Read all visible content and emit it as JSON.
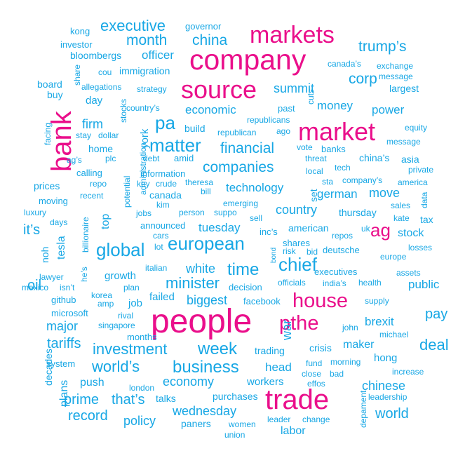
{
  "colors": {
    "primary": "#ea0f8b",
    "secondary": "#17a7e5"
  },
  "words": [
    {
      "text": "people",
      "group": "primary"
    },
    {
      "text": "company",
      "group": "primary"
    },
    {
      "text": "trade",
      "group": "primary"
    },
    {
      "text": "markets",
      "group": "primary"
    },
    {
      "text": "source",
      "group": "primary"
    },
    {
      "text": "market",
      "group": "primary"
    },
    {
      "text": "bank",
      "group": "primary"
    },
    {
      "text": "house",
      "group": "primary"
    },
    {
      "text": "pthe",
      "group": "primary"
    },
    {
      "text": "ag",
      "group": "primary"
    },
    {
      "text": "executive",
      "group": "secondary"
    },
    {
      "text": "governor",
      "group": "secondary"
    },
    {
      "text": "kong",
      "group": "secondary"
    },
    {
      "text": "month",
      "group": "secondary"
    },
    {
      "text": "china",
      "group": "secondary"
    },
    {
      "text": "trump’s",
      "group": "secondary"
    },
    {
      "text": "investor",
      "group": "secondary"
    },
    {
      "text": "bloombergs",
      "group": "secondary"
    },
    {
      "text": "officer",
      "group": "secondary"
    },
    {
      "text": "canada’s",
      "group": "secondary"
    },
    {
      "text": "exchange",
      "group": "secondary"
    },
    {
      "text": "cou",
      "group": "secondary"
    },
    {
      "text": "immigration",
      "group": "secondary"
    },
    {
      "text": "message",
      "group": "secondary"
    },
    {
      "text": "share",
      "group": "secondary"
    },
    {
      "text": "corp",
      "group": "secondary"
    },
    {
      "text": "board",
      "group": "secondary"
    },
    {
      "text": "allegations",
      "group": "secondary"
    },
    {
      "text": "strategy",
      "group": "secondary"
    },
    {
      "text": "summit",
      "group": "secondary"
    },
    {
      "text": "largest",
      "group": "secondary"
    },
    {
      "text": "buy",
      "group": "secondary"
    },
    {
      "text": "cuts",
      "group": "secondary"
    },
    {
      "text": "day",
      "group": "secondary"
    },
    {
      "text": "stocks",
      "group": "secondary"
    },
    {
      "text": "country’s",
      "group": "secondary"
    },
    {
      "text": "money",
      "group": "secondary"
    },
    {
      "text": "economic",
      "group": "secondary"
    },
    {
      "text": "past",
      "group": "secondary"
    },
    {
      "text": "power",
      "group": "secondary"
    },
    {
      "text": "republicans",
      "group": "secondary"
    },
    {
      "text": "facing",
      "group": "secondary"
    },
    {
      "text": "pa",
      "group": "secondary"
    },
    {
      "text": "firm",
      "group": "secondary"
    },
    {
      "text": "build",
      "group": "secondary"
    },
    {
      "text": "republican",
      "group": "secondary"
    },
    {
      "text": "ago",
      "group": "secondary"
    },
    {
      "text": "equity",
      "group": "secondary"
    },
    {
      "text": "stay",
      "group": "secondary"
    },
    {
      "text": "dollar",
      "group": "secondary"
    },
    {
      "text": "york",
      "group": "secondary"
    },
    {
      "text": "matter",
      "group": "secondary"
    },
    {
      "text": "financial",
      "group": "secondary"
    },
    {
      "text": "message",
      "group": "secondary"
    },
    {
      "text": "home",
      "group": "secondary"
    },
    {
      "text": "vote",
      "group": "secondary"
    },
    {
      "text": "banks",
      "group": "secondary"
    },
    {
      "text": "ag’s",
      "group": "secondary"
    },
    {
      "text": "plc",
      "group": "secondary"
    },
    {
      "text": "debt",
      "group": "secondary"
    },
    {
      "text": "amid",
      "group": "secondary"
    },
    {
      "text": "threat",
      "group": "secondary"
    },
    {
      "text": "china’s",
      "group": "secondary"
    },
    {
      "text": "asia",
      "group": "secondary"
    },
    {
      "text": "administration",
      "group": "secondary"
    },
    {
      "text": "companies",
      "group": "secondary"
    },
    {
      "text": "tech",
      "group": "secondary"
    },
    {
      "text": "private",
      "group": "secondary"
    },
    {
      "text": "calling",
      "group": "secondary"
    },
    {
      "text": "information",
      "group": "secondary"
    },
    {
      "text": "local",
      "group": "secondary"
    },
    {
      "text": "company’s",
      "group": "secondary"
    },
    {
      "text": "repo",
      "group": "secondary"
    },
    {
      "text": "key",
      "group": "secondary"
    },
    {
      "text": "crude",
      "group": "secondary"
    },
    {
      "text": "theresa",
      "group": "secondary"
    },
    {
      "text": "sta",
      "group": "secondary"
    },
    {
      "text": "america",
      "group": "secondary"
    },
    {
      "text": "prices",
      "group": "secondary"
    },
    {
      "text": "potential",
      "group": "secondary"
    },
    {
      "text": "technology",
      "group": "secondary"
    },
    {
      "text": "set",
      "group": "secondary"
    },
    {
      "text": "german",
      "group": "secondary"
    },
    {
      "text": "move",
      "group": "secondary"
    },
    {
      "text": "recent",
      "group": "secondary"
    },
    {
      "text": "canada",
      "group": "secondary"
    },
    {
      "text": "bill",
      "group": "secondary"
    },
    {
      "text": "data",
      "group": "secondary"
    },
    {
      "text": "moving",
      "group": "secondary"
    },
    {
      "text": "kim",
      "group": "secondary"
    },
    {
      "text": "emerging",
      "group": "secondary"
    },
    {
      "text": "sales",
      "group": "secondary"
    },
    {
      "text": "luxury",
      "group": "secondary"
    },
    {
      "text": "billionaire",
      "group": "secondary"
    },
    {
      "text": "top",
      "group": "secondary"
    },
    {
      "text": "jobs",
      "group": "secondary"
    },
    {
      "text": "person",
      "group": "secondary"
    },
    {
      "text": "suppo",
      "group": "secondary"
    },
    {
      "text": "country",
      "group": "secondary"
    },
    {
      "text": "thursday",
      "group": "secondary"
    },
    {
      "text": "kate",
      "group": "secondary"
    },
    {
      "text": "tax",
      "group": "secondary"
    },
    {
      "text": "sell",
      "group": "secondary"
    },
    {
      "text": "days",
      "group": "secondary"
    },
    {
      "text": "announced",
      "group": "secondary"
    },
    {
      "text": "tuesday",
      "group": "secondary"
    },
    {
      "text": "american",
      "group": "secondary"
    },
    {
      "text": "uk",
      "group": "secondary"
    },
    {
      "text": "it’s",
      "group": "secondary"
    },
    {
      "text": "cars",
      "group": "secondary"
    },
    {
      "text": "inc’s",
      "group": "secondary"
    },
    {
      "text": "repos",
      "group": "secondary"
    },
    {
      "text": "stock",
      "group": "secondary"
    },
    {
      "text": "tesla",
      "group": "secondary"
    },
    {
      "text": "noh",
      "group": "secondary"
    },
    {
      "text": "bond",
      "group": "secondary"
    },
    {
      "text": "shares",
      "group": "secondary"
    },
    {
      "text": "deutsche",
      "group": "secondary"
    },
    {
      "text": "global",
      "group": "secondary"
    },
    {
      "text": "european",
      "group": "secondary"
    },
    {
      "text": "lot",
      "group": "secondary"
    },
    {
      "text": "risk",
      "group": "secondary"
    },
    {
      "text": "bid",
      "group": "secondary"
    },
    {
      "text": "losses",
      "group": "secondary"
    },
    {
      "text": "europe",
      "group": "secondary"
    },
    {
      "text": "chief",
      "group": "secondary"
    },
    {
      "text": "time",
      "group": "secondary"
    },
    {
      "text": "white",
      "group": "secondary"
    },
    {
      "text": "italian",
      "group": "secondary"
    },
    {
      "text": "lawyer",
      "group": "secondary"
    },
    {
      "text": "he’s",
      "group": "secondary"
    },
    {
      "text": "executives",
      "group": "secondary"
    },
    {
      "text": "assets",
      "group": "secondary"
    },
    {
      "text": "growth",
      "group": "secondary"
    },
    {
      "text": "minister",
      "group": "secondary"
    },
    {
      "text": "mexico",
      "group": "secondary"
    },
    {
      "text": "isn’t",
      "group": "secondary"
    },
    {
      "text": "plan",
      "group": "secondary"
    },
    {
      "text": "decision",
      "group": "secondary"
    },
    {
      "text": "officials",
      "group": "secondary"
    },
    {
      "text": "india’s",
      "group": "secondary"
    },
    {
      "text": "health",
      "group": "secondary"
    },
    {
      "text": "public",
      "group": "secondary"
    },
    {
      "text": "oil",
      "group": "secondary"
    },
    {
      "text": "github",
      "group": "secondary"
    },
    {
      "text": "korea",
      "group": "secondary"
    },
    {
      "text": "failed",
      "group": "secondary"
    },
    {
      "text": "biggest",
      "group": "secondary"
    },
    {
      "text": "facebook",
      "group": "secondary"
    },
    {
      "text": "supply",
      "group": "secondary"
    },
    {
      "text": "amp",
      "group": "secondary"
    },
    {
      "text": "job",
      "group": "secondary"
    },
    {
      "text": "pay",
      "group": "secondary"
    },
    {
      "text": "microsoft",
      "group": "secondary"
    },
    {
      "text": "rival",
      "group": "secondary"
    },
    {
      "text": "brexit",
      "group": "secondary"
    },
    {
      "text": "major",
      "group": "secondary"
    },
    {
      "text": "singapore",
      "group": "secondary"
    },
    {
      "text": "war",
      "group": "secondary"
    },
    {
      "text": "john",
      "group": "secondary"
    },
    {
      "text": "michael",
      "group": "secondary"
    },
    {
      "text": "months",
      "group": "secondary"
    },
    {
      "text": "tariffs",
      "group": "secondary"
    },
    {
      "text": "crisis",
      "group": "secondary"
    },
    {
      "text": "maker",
      "group": "secondary"
    },
    {
      "text": "deal",
      "group": "secondary"
    },
    {
      "text": "investment",
      "group": "secondary"
    },
    {
      "text": "week",
      "group": "secondary"
    },
    {
      "text": "trading",
      "group": "secondary"
    },
    {
      "text": "decades",
      "group": "secondary"
    },
    {
      "text": "system",
      "group": "secondary"
    },
    {
      "text": "hong",
      "group": "secondary"
    },
    {
      "text": "fund",
      "group": "secondary"
    },
    {
      "text": "morning",
      "group": "secondary"
    },
    {
      "text": "world’s",
      "group": "secondary"
    },
    {
      "text": "business",
      "group": "secondary"
    },
    {
      "text": "head",
      "group": "secondary"
    },
    {
      "text": "increase",
      "group": "secondary"
    },
    {
      "text": "close",
      "group": "secondary"
    },
    {
      "text": "bad",
      "group": "secondary"
    },
    {
      "text": "economy",
      "group": "secondary"
    },
    {
      "text": "workers",
      "group": "secondary"
    },
    {
      "text": "effos",
      "group": "secondary"
    },
    {
      "text": "chinese",
      "group": "secondary"
    },
    {
      "text": "push",
      "group": "secondary"
    },
    {
      "text": "london",
      "group": "secondary"
    },
    {
      "text": "plans",
      "group": "secondary"
    },
    {
      "text": "leadership",
      "group": "secondary"
    },
    {
      "text": "prime",
      "group": "secondary"
    },
    {
      "text": "that’s",
      "group": "secondary"
    },
    {
      "text": "talks",
      "group": "secondary"
    },
    {
      "text": "purchases",
      "group": "secondary"
    },
    {
      "text": "depament",
      "group": "secondary"
    },
    {
      "text": "wednesday",
      "group": "secondary"
    },
    {
      "text": "record",
      "group": "secondary"
    },
    {
      "text": "world",
      "group": "secondary"
    },
    {
      "text": "policy",
      "group": "secondary"
    },
    {
      "text": "paners",
      "group": "secondary"
    },
    {
      "text": "women",
      "group": "secondary"
    },
    {
      "text": "leader",
      "group": "secondary"
    },
    {
      "text": "change",
      "group": "secondary"
    },
    {
      "text": "labor",
      "group": "secondary"
    },
    {
      "text": "union",
      "group": "secondary"
    }
  ]
}
